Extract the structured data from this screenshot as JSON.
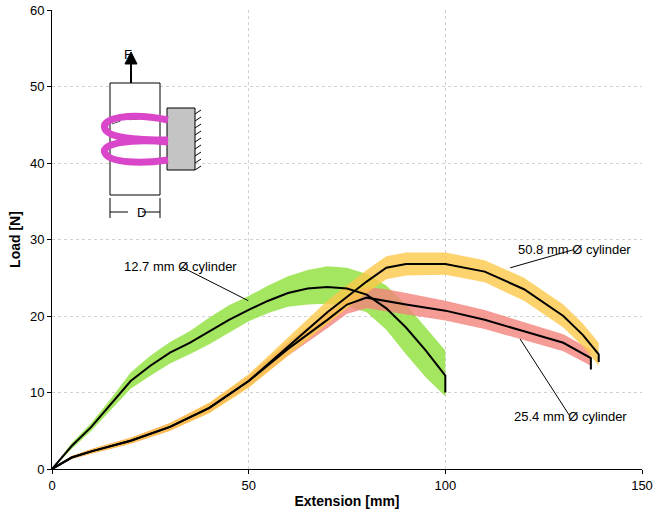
{
  "chart_data": {
    "type": "line",
    "x_label": "Extension [mm]",
    "y_label": "Load [N]",
    "xlim": [
      0,
      150
    ],
    "xticks": [
      0,
      50,
      100,
      150
    ],
    "ylim": [
      0,
      60
    ],
    "yticks": [
      0,
      10,
      20,
      30,
      40,
      50,
      60
    ],
    "grid": true,
    "series": [
      {
        "name": "12.7 mm Ø cylinder",
        "color": "#8ee03a",
        "x": [
          0,
          5,
          10,
          15,
          20,
          25,
          30,
          35,
          40,
          45,
          50,
          55,
          60,
          65,
          70,
          75,
          80,
          85,
          90,
          95,
          100,
          100
        ],
        "values": [
          0,
          3,
          5.5,
          8.5,
          11.5,
          13.5,
          15.2,
          16.5,
          18,
          19.5,
          20.8,
          22,
          23,
          23.6,
          23.8,
          23.6,
          22.8,
          21,
          18.5,
          15.5,
          12.2,
          10
        ],
        "lower": [
          0,
          2.6,
          5,
          7.8,
          10.5,
          12.2,
          13.8,
          15,
          16.3,
          17.8,
          19.3,
          20.4,
          21.2,
          21.5,
          21.6,
          21.3,
          20.5,
          18.2,
          15,
          12,
          9.5,
          9
        ],
        "upper": [
          0,
          3.4,
          6,
          9.2,
          12.6,
          14.8,
          16.6,
          18,
          19.8,
          21.4,
          22.6,
          24,
          25.2,
          26,
          26.5,
          26.3,
          25.5,
          24,
          21.5,
          18.5,
          15.5,
          15
        ],
        "label": {
          "x": 32.6,
          "y": 26.5
        },
        "arrow_to": {
          "x": 49.9,
          "y": 22
        }
      },
      {
        "name": "25.4 mm Ø cylinder",
        "color": "#f4837d",
        "x": [
          0,
          5,
          10,
          20,
          30,
          40,
          50,
          60,
          70,
          75,
          80,
          85,
          90,
          100,
          110,
          120,
          130,
          137,
          137
        ],
        "values": [
          0,
          1.5,
          2.3,
          3.7,
          5.5,
          8,
          11.5,
          15.7,
          19.5,
          21.5,
          22.4,
          22,
          21.5,
          20.7,
          19.5,
          18,
          16.5,
          14.5,
          13
        ],
        "lower": [
          0,
          1.3,
          2,
          3.3,
          5,
          7.4,
          10.8,
          14.8,
          18.4,
          20.3,
          21,
          20.6,
          20.2,
          19.4,
          18.3,
          16.9,
          15.4,
          13.5,
          12.5
        ],
        "upper": [
          0,
          1.7,
          2.6,
          4.1,
          6,
          8.6,
          12.2,
          16.6,
          20.6,
          22.7,
          23.8,
          23.5,
          23,
          22,
          20.8,
          19.2,
          17.6,
          15.6,
          14
        ],
        "label": {
          "x": 131.8,
          "y": 6.8
        },
        "arrow_to": {
          "x": 119,
          "y": 17
        }
      },
      {
        "name": "50.8 mm Ø cylinder",
        "color": "#fcc84a",
        "x": [
          0,
          5,
          10,
          20,
          30,
          40,
          50,
          60,
          70,
          80,
          85,
          90,
          100,
          110,
          120,
          130,
          135,
          139,
          139
        ],
        "values": [
          0,
          1.5,
          2.3,
          3.7,
          5.5,
          8,
          11.5,
          16,
          20.5,
          24.5,
          26.3,
          26.8,
          26.8,
          25.8,
          23.5,
          20,
          17.5,
          15,
          14
        ],
        "lower": [
          0,
          1.3,
          2,
          3.3,
          5,
          7.3,
          10.6,
          14.8,
          19,
          23,
          24.8,
          25.3,
          25.4,
          24.4,
          22,
          18.5,
          16,
          13.5,
          12.5
        ],
        "upper": [
          0,
          1.7,
          2.6,
          4.1,
          6,
          8.7,
          12.4,
          17.2,
          22,
          26,
          27.8,
          28.3,
          28.3,
          27.3,
          25,
          21.5,
          19,
          16.5,
          15.5
        ],
        "label": {
          "x": 132.8,
          "y": 28.7
        },
        "arrow_to": {
          "x": 116.5,
          "y": 26.3
        }
      }
    ],
    "inset": {
      "force_label": "F",
      "diameter_label": "D"
    }
  }
}
